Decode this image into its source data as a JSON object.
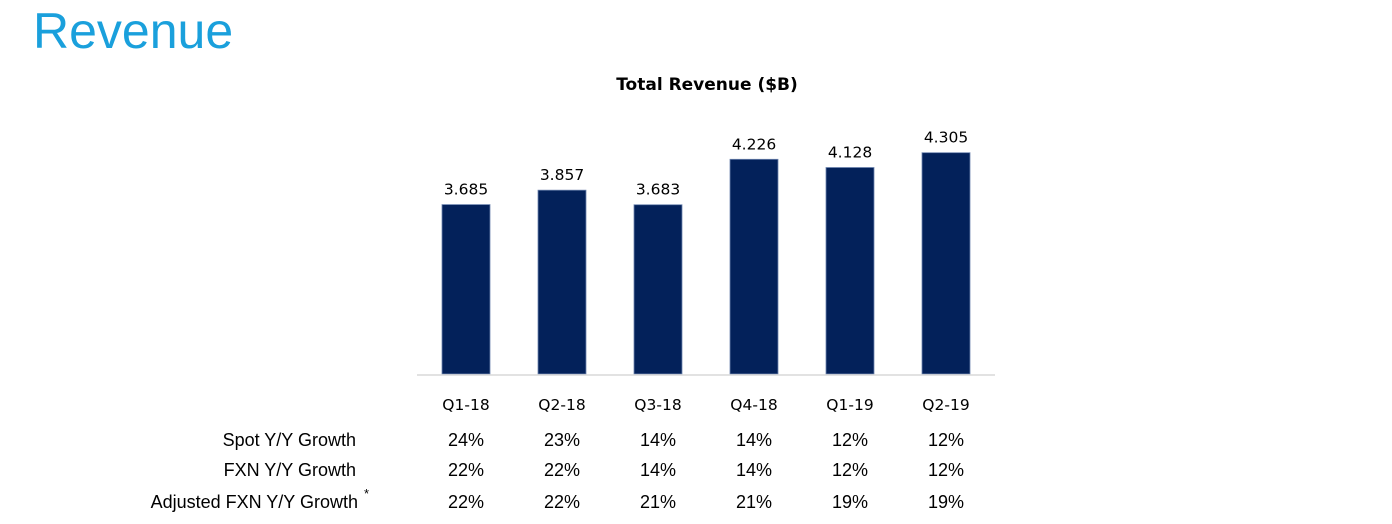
{
  "slide": {
    "title": "Revenue"
  },
  "chart_data": {
    "type": "bar",
    "title": "Total Revenue ($B)",
    "xlabel": "",
    "ylabel": "",
    "categories": [
      "Q1-18",
      "Q2-18",
      "Q3-18",
      "Q4-18",
      "Q1-19",
      "Q2-19"
    ],
    "values": [
      3.685,
      3.857,
      3.683,
      4.226,
      4.128,
      4.305
    ],
    "data_labels": [
      "3.685",
      "3.857",
      "3.683",
      "4.226",
      "4.128",
      "4.305"
    ],
    "ylim": [
      1.66,
      4.6
    ],
    "grid": false,
    "legend": "none",
    "colors": {
      "bar": "#03215a",
      "axis": "#d9d9d9"
    }
  },
  "growth_table": {
    "rows": [
      {
        "label": "Spot Y/Y Growth",
        "values": [
          "24%",
          "23%",
          "14%",
          "14%",
          "12%",
          "12%"
        ]
      },
      {
        "label": "FXN Y/Y Growth",
        "values": [
          "22%",
          "22%",
          "14%",
          "14%",
          "12%",
          "12%"
        ]
      },
      {
        "label": "Adjusted FXN Y/Y Growth",
        "footnote_mark": "*",
        "values": [
          "22%",
          "22%",
          "21%",
          "21%",
          "19%",
          "19%"
        ]
      }
    ]
  },
  "colors": {
    "title": "#1aa0dc"
  }
}
